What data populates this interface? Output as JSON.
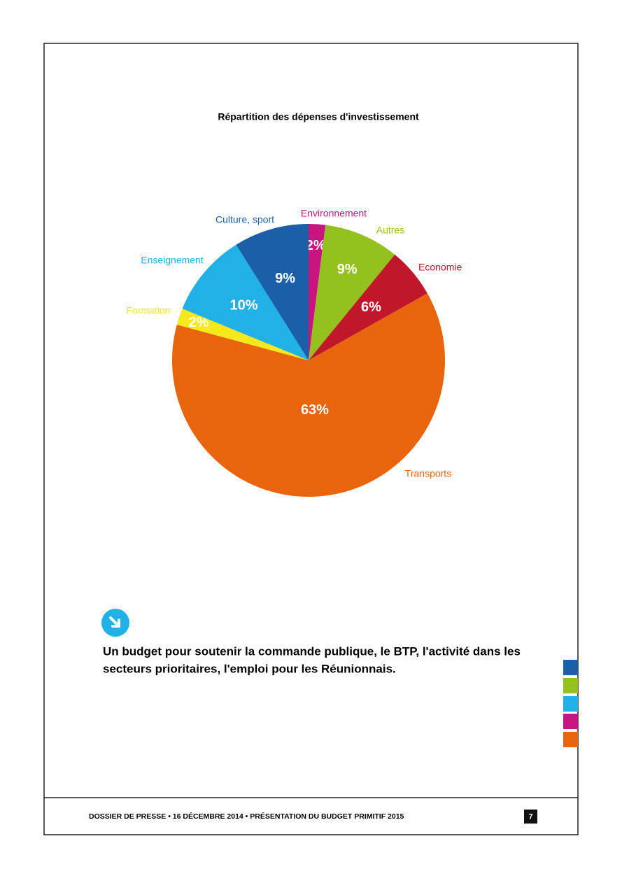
{
  "chart_data": {
    "type": "pie",
    "title": "Répartition des dépenses d'investissement",
    "categories": [
      "Environnement",
      "Autres",
      "Economie",
      "Transports",
      "Formation",
      "Enseignement",
      "Culture, sport"
    ],
    "values": [
      2,
      9,
      6,
      63,
      2,
      10,
      9
    ],
    "value_labels": [
      "2%",
      "9%",
      "6%",
      "63%",
      "2%",
      "10%",
      "9%"
    ],
    "colors": [
      "#c8157f",
      "#95c11f",
      "#c0172b",
      "#e8650e",
      "#f7e81b",
      "#21b1e6",
      "#1b5fa8"
    ]
  },
  "callout": {
    "lines": [
      "Un budget pour soutenir la commande publique, le BTP, l'activité dans les",
      "secteurs prioritaires, l'emploi pour les Réunionnais."
    ]
  },
  "footer": {
    "text": "DOSSIER DE PRESSE • 16 DÉCEMBRE 2014 • PRÉSENTATION DU BUDGET PRIMITIF 2015",
    "page": "7"
  }
}
